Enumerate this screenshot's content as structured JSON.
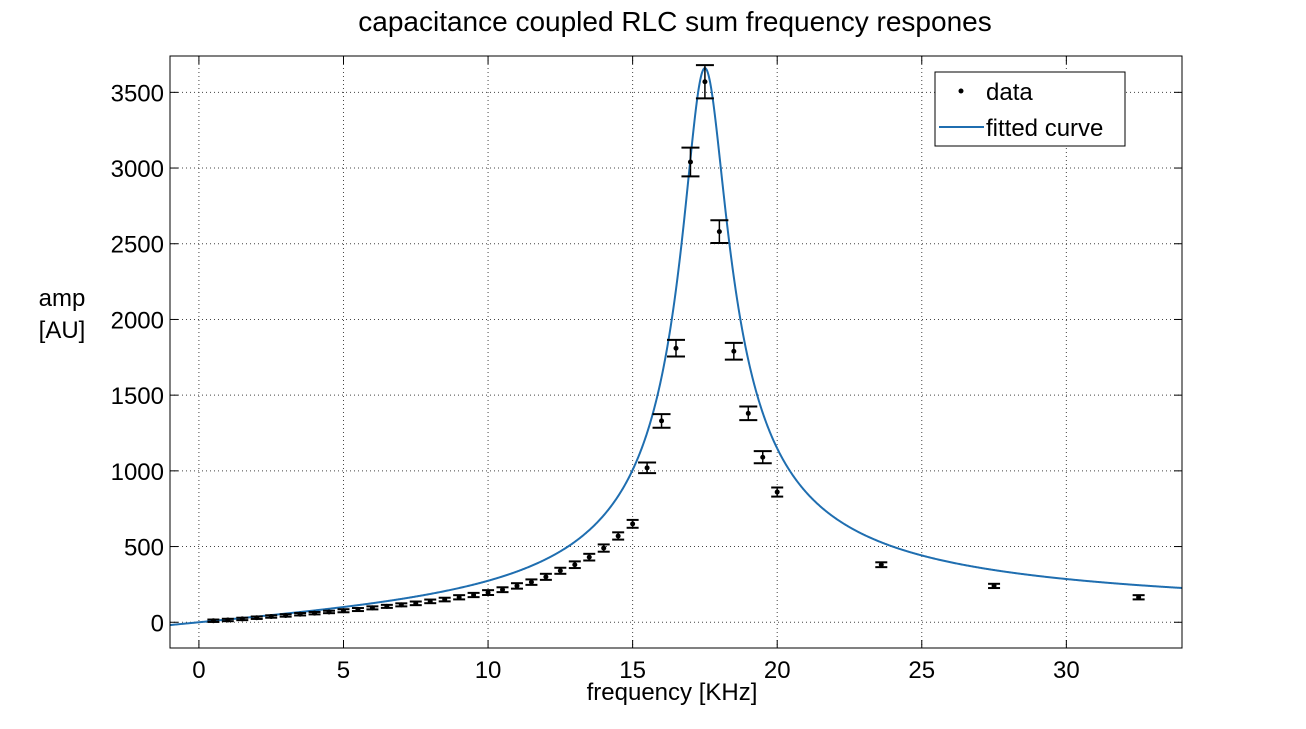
{
  "chart_data": {
    "type": "scatter",
    "title": "capacitance coupled RLC sum frequency respones",
    "xlabel": "frequency [KHz]",
    "ylabel_lines": [
      "amp",
      "[AU]"
    ],
    "xlim": [
      -1,
      34
    ],
    "ylim": [
      -170,
      3740
    ],
    "x_ticks": [
      0,
      5,
      10,
      15,
      20,
      25,
      30
    ],
    "y_ticks": [
      0,
      500,
      1000,
      1500,
      2000,
      2500,
      3000,
      3500
    ],
    "grid": true,
    "legend": {
      "position": "top-right",
      "entries": [
        "data",
        "fitted curve"
      ]
    },
    "colors": {
      "data": "#000000",
      "fit": "#1f6eb0",
      "grid": "#444444",
      "axes": "#000000"
    },
    "series": [
      {
        "name": "data",
        "kind": "points_with_error_bars",
        "x": [
          0.5,
          1.0,
          1.5,
          2.0,
          2.5,
          3.0,
          3.5,
          4.0,
          4.5,
          5.0,
          5.5,
          6.0,
          6.5,
          7.0,
          7.5,
          8.0,
          8.5,
          9.0,
          9.5,
          10.0,
          10.5,
          11.0,
          11.5,
          12.0,
          12.5,
          13.0,
          13.5,
          14.0,
          14.5,
          15.0,
          15.5,
          16.0,
          16.5,
          17.0,
          17.5,
          18.0,
          18.5,
          19.0,
          19.5,
          20.0,
          23.6,
          27.5,
          32.5
        ],
        "y": [
          10,
          15,
          22,
          30,
          38,
          45,
          53,
          60,
          68,
          76,
          84,
          95,
          105,
          115,
          125,
          138,
          150,
          165,
          180,
          196,
          215,
          240,
          265,
          300,
          340,
          380,
          430,
          490,
          570,
          650,
          1020,
          1330,
          1810,
          3040,
          3570,
          2580,
          1790,
          1380,
          1090,
          860,
          380,
          240,
          165
        ],
        "error": [
          8,
          8,
          8,
          8,
          8,
          8,
          8,
          8,
          8,
          10,
          10,
          10,
          10,
          10,
          12,
          12,
          12,
          14,
          14,
          16,
          16,
          18,
          18,
          20,
          20,
          22,
          22,
          24,
          24,
          26,
          35,
          45,
          55,
          95,
          110,
          75,
          55,
          45,
          40,
          30,
          16,
          14,
          14
        ]
      },
      {
        "name": "fitted curve",
        "kind": "line",
        "model": "lorentzian_amplitude",
        "params": {
          "f0": 17.5,
          "peak": 3660,
          "Q": 11.3
        }
      }
    ]
  }
}
